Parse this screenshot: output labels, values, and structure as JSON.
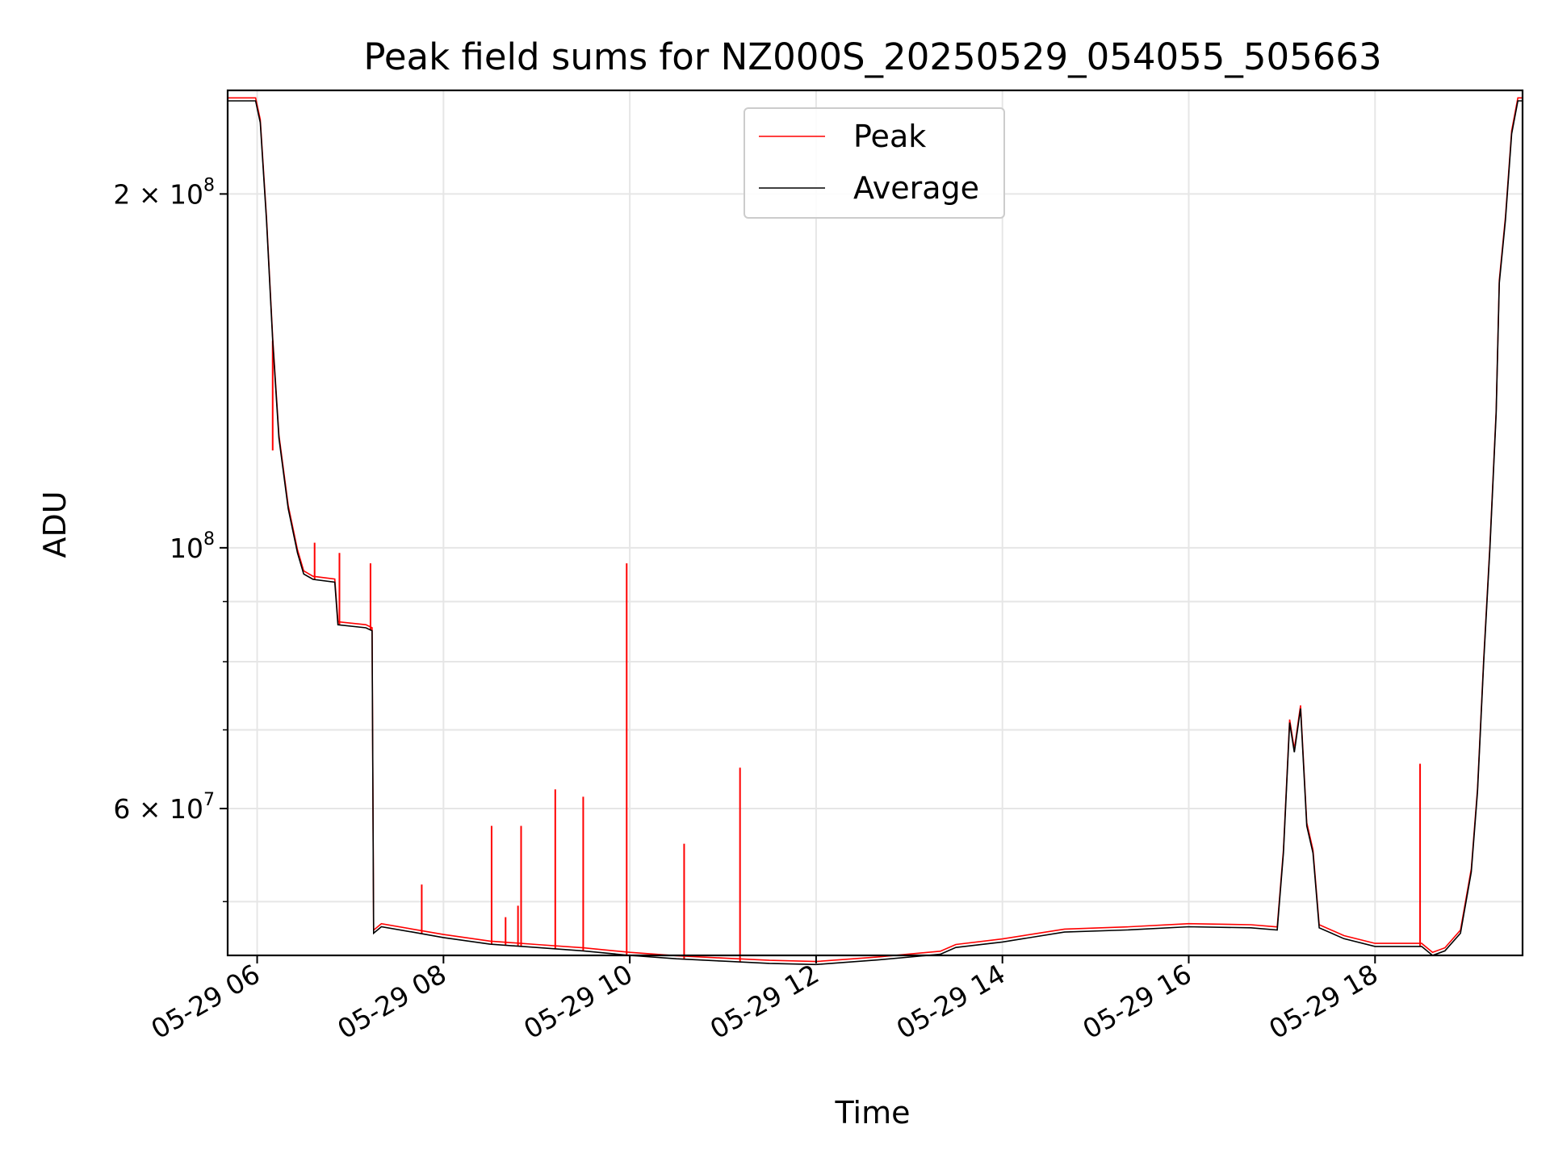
{
  "chart_data": {
    "type": "line",
    "title": "Peak field sums for NZ000S_20250529_054055_505663",
    "xlabel": "Time",
    "ylabel": "ADU",
    "yscale": "log",
    "ylim": [
      45000000,
      245000000
    ],
    "xlim": [
      "2025-05-29 05:41",
      "2025-05-29 19:35"
    ],
    "x_ticks": [
      "05-29 06",
      "05-29 08",
      "05-29 10",
      "05-29 12",
      "05-29 14",
      "05-29 16",
      "05-29 18"
    ],
    "y_ticks": [
      {
        "base": "2 × 10",
        "exp": "8",
        "value": 200000000
      },
      {
        "base": "10",
        "exp": "8",
        "value": 100000000
      },
      {
        "base": "6 × 10",
        "exp": "7",
        "value": 60000000
      }
    ],
    "grid": true,
    "legend": {
      "position": "top-center",
      "entries": [
        "Peak",
        "Average"
      ]
    },
    "colors": {
      "Peak": "#ff0000",
      "Average": "#000000",
      "grid": "#e6e6e6"
    },
    "series": [
      {
        "name": "Average",
        "points": [
          [
            "2025-05-29 05:41",
            240000000
          ],
          [
            "2025-05-29 05:59",
            240000000
          ],
          [
            "2025-05-29 06:02",
            230000000
          ],
          [
            "2025-05-29 06:06",
            190000000
          ],
          [
            "2025-05-29 06:10",
            150000000
          ],
          [
            "2025-05-29 06:14",
            124000000
          ],
          [
            "2025-05-29 06:20",
            108000000
          ],
          [
            "2025-05-29 06:26",
            99000000
          ],
          [
            "2025-05-29 06:30",
            95000000
          ],
          [
            "2025-05-29 06:36",
            94000000
          ],
          [
            "2025-05-29 06:50",
            93500000
          ],
          [
            "2025-05-29 06:52",
            86000000
          ],
          [
            "2025-05-29 07:10",
            85500000
          ],
          [
            "2025-05-29 07:14",
            85000000
          ],
          [
            "2025-05-29 07:15",
            47000000
          ],
          [
            "2025-05-29 07:20",
            47600000
          ],
          [
            "2025-05-29 07:40",
            47100000
          ],
          [
            "2025-05-29 08:00",
            46600000
          ],
          [
            "2025-05-29 08:30",
            46000000
          ],
          [
            "2025-05-29 09:00",
            45700000
          ],
          [
            "2025-05-29 09:30",
            45400000
          ],
          [
            "2025-05-29 10:00",
            45000000
          ],
          [
            "2025-05-29 10:30",
            44700000
          ],
          [
            "2025-05-29 11:00",
            44500000
          ],
          [
            "2025-05-29 11:30",
            44300000
          ],
          [
            "2025-05-29 12:00",
            44200000
          ],
          [
            "2025-05-29 12:40",
            44600000
          ],
          [
            "2025-05-29 13:20",
            45100000
          ],
          [
            "2025-05-29 13:30",
            45700000
          ],
          [
            "2025-05-29 14:00",
            46200000
          ],
          [
            "2025-05-29 14:40",
            47100000
          ],
          [
            "2025-05-29 15:20",
            47300000
          ],
          [
            "2025-05-29 16:00",
            47600000
          ],
          [
            "2025-05-29 16:40",
            47500000
          ],
          [
            "2025-05-29 16:57",
            47300000
          ],
          [
            "2025-05-29 17:01",
            55000000
          ],
          [
            "2025-05-29 17:05",
            71000000
          ],
          [
            "2025-05-29 17:08",
            67000000
          ],
          [
            "2025-05-29 17:12",
            73000000
          ],
          [
            "2025-05-29 17:16",
            58000000
          ],
          [
            "2025-05-29 17:20",
            55000000
          ],
          [
            "2025-05-29 17:24",
            47500000
          ],
          [
            "2025-05-29 17:40",
            46500000
          ],
          [
            "2025-05-29 18:00",
            45800000
          ],
          [
            "2025-05-29 18:30",
            45800000
          ],
          [
            "2025-05-29 18:37",
            45000000
          ],
          [
            "2025-05-29 18:45",
            45400000
          ],
          [
            "2025-05-29 18:55",
            47000000
          ],
          [
            "2025-05-29 19:02",
            53000000
          ],
          [
            "2025-05-29 19:06",
            62000000
          ],
          [
            "2025-05-29 19:10",
            80000000
          ],
          [
            "2025-05-29 19:14",
            100000000
          ],
          [
            "2025-05-29 19:18",
            130000000
          ],
          [
            "2025-05-29 19:20",
            168000000
          ],
          [
            "2025-05-29 19:24",
            190000000
          ],
          [
            "2025-05-29 19:28",
            225000000
          ],
          [
            "2025-05-29 19:32",
            240000000
          ],
          [
            "2025-05-29 19:35",
            240000000
          ]
        ]
      },
      {
        "name": "Peak",
        "points": [
          [
            "2025-05-29 06:10",
            121000000
          ],
          [
            "2025-05-29 06:37",
            101000000
          ],
          [
            "2025-05-29 06:53",
            99000000
          ],
          [
            "2025-05-29 07:13",
            97000000
          ],
          [
            "2025-05-29 07:46",
            51700000
          ],
          [
            "2025-05-29 08:31",
            58000000
          ],
          [
            "2025-05-29 08:40",
            48500000
          ],
          [
            "2025-05-29 08:48",
            49600000
          ],
          [
            "2025-05-29 08:50",
            58000000
          ],
          [
            "2025-05-29 09:12",
            62300000
          ],
          [
            "2025-05-29 09:30",
            61400000
          ],
          [
            "2025-05-29 09:58",
            97000000
          ],
          [
            "2025-05-29 10:35",
            56000000
          ],
          [
            "2025-05-29 11:11",
            65000000
          ],
          [
            "2025-05-29 18:29",
            65500000
          ]
        ]
      }
    ]
  }
}
